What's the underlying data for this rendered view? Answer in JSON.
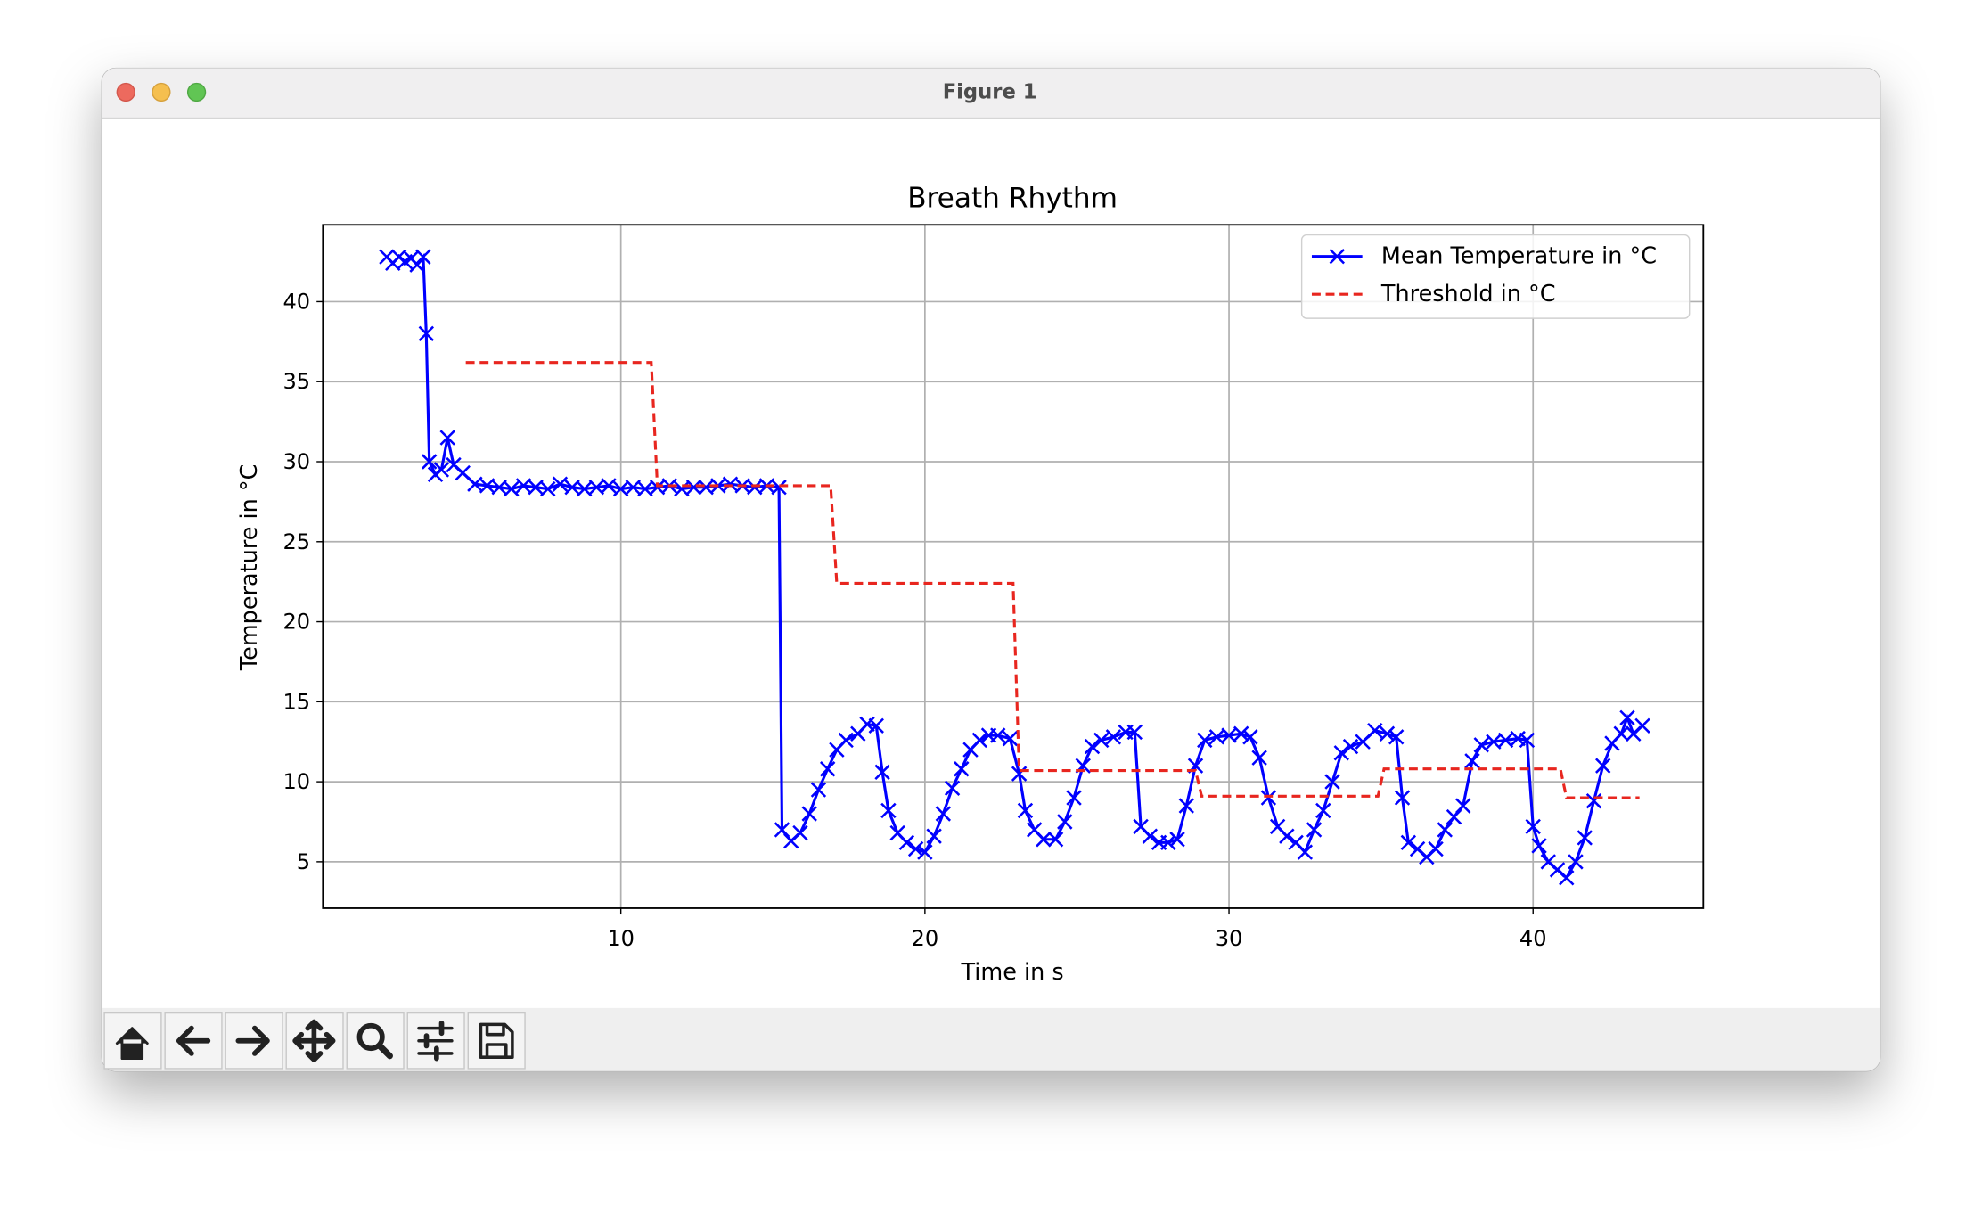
{
  "window_title": "Figure 1",
  "chart_data": {
    "type": "line",
    "title": "Breath Rhythm",
    "xlabel": "Time in s",
    "ylabel": "Temperature in °C",
    "xlim": [
      0.2,
      45.6
    ],
    "ylim": [
      2.1,
      44.8
    ],
    "xticks": [
      10,
      20,
      30,
      40
    ],
    "yticks": [
      5,
      10,
      15,
      20,
      25,
      30,
      35,
      40
    ],
    "grid": true,
    "legend": "upper right",
    "series": [
      {
        "name": "Mean Temperature in °C",
        "color": "#0000ff",
        "marker": "x",
        "linestyle": "solid",
        "x": [
          2.3,
          2.5,
          2.7,
          2.9,
          3.1,
          3.3,
          3.5,
          3.6,
          3.7,
          3.9,
          4.1,
          4.3,
          4.5,
          4.8,
          5.2,
          5.6,
          6.0,
          6.4,
          6.8,
          7.2,
          7.6,
          8.0,
          8.4,
          8.8,
          9.2,
          9.6,
          10.0,
          10.4,
          10.8,
          11.2,
          11.6,
          12.0,
          12.4,
          12.8,
          13.2,
          13.6,
          14.0,
          14.4,
          14.8,
          15.2,
          15.3,
          15.6,
          15.9,
          16.2,
          16.5,
          16.8,
          17.1,
          17.4,
          17.8,
          18.1,
          18.4,
          18.6,
          18.8,
          19.1,
          19.4,
          19.7,
          20.0,
          20.3,
          20.6,
          20.9,
          21.2,
          21.5,
          21.8,
          22.1,
          22.4,
          22.8,
          23.1,
          23.3,
          23.6,
          23.9,
          24.3,
          24.6,
          24.9,
          25.2,
          25.5,
          25.8,
          26.2,
          26.6,
          26.9,
          27.1,
          27.4,
          27.7,
          28.0,
          28.3,
          28.6,
          28.9,
          29.2,
          29.6,
          30.0,
          30.4,
          30.7,
          31.0,
          31.3,
          31.6,
          31.9,
          32.2,
          32.5,
          32.8,
          33.1,
          33.4,
          33.7,
          34.0,
          34.4,
          34.8,
          35.2,
          35.5,
          35.7,
          35.9,
          36.2,
          36.5,
          36.8,
          37.1,
          37.4,
          37.7,
          38.0,
          38.3,
          38.7,
          39.1,
          39.5,
          39.8,
          40.0,
          40.2,
          40.5,
          40.8,
          41.1,
          41.4,
          41.7,
          42.0,
          42.3,
          42.6,
          42.9,
          43.1,
          43.3,
          43.6
        ],
        "values": [
          42.8,
          42.4,
          42.8,
          42.5,
          42.7,
          42.3,
          42.8,
          38,
          30,
          29.2,
          29.5,
          31.5,
          29.8,
          29.3,
          28.6,
          28.5,
          28.4,
          28.3,
          28.5,
          28.4,
          28.3,
          28.6,
          28.4,
          28.3,
          28.4,
          28.5,
          28.3,
          28.4,
          28.3,
          28.4,
          28.5,
          28.3,
          28.4,
          28.4,
          28.5,
          28.6,
          28.5,
          28.4,
          28.5,
          28.4,
          7,
          6.3,
          6.8,
          8,
          9.5,
          10.8,
          12,
          12.6,
          13,
          13.6,
          13.5,
          10.6,
          8.2,
          6.8,
          6.2,
          5.8,
          5.6,
          6.6,
          8,
          9.6,
          10.8,
          12,
          12.6,
          12.9,
          12.9,
          12.7,
          10.5,
          8.2,
          7,
          6.4,
          6.4,
          7.5,
          9,
          11,
          12.2,
          12.6,
          12.8,
          13.1,
          13.1,
          7.2,
          6.6,
          6.2,
          6.2,
          6.4,
          8.5,
          11,
          12.6,
          12.8,
          12.9,
          13,
          12.8,
          11.5,
          9,
          7.2,
          6.6,
          6.2,
          5.6,
          7,
          8.2,
          10,
          11.8,
          12.2,
          12.5,
          13.2,
          13,
          12.8,
          9,
          6.2,
          5.8,
          5.3,
          5.8,
          7,
          7.8,
          8.5,
          11.3,
          12.3,
          12.5,
          12.6,
          12.7,
          12.6,
          7.2,
          6,
          5,
          4.5,
          4,
          5,
          6.5,
          8.8,
          11,
          12.4,
          13,
          14,
          13,
          13.5
        ]
      },
      {
        "name": "Threshold in °C",
        "color": "#e8261f",
        "marker": "none",
        "linestyle": "dashed",
        "x": [
          4.9,
          11.0,
          11.2,
          16.9,
          17.1,
          22.9,
          23.1,
          28.9,
          29.1,
          34.9,
          35.1,
          40.9,
          41.1,
          43.5
        ],
        "values": [
          36.2,
          36.2,
          28.5,
          28.5,
          22.4,
          22.4,
          10.7,
          10.7,
          9.1,
          9.1,
          10.8,
          10.8,
          9.0,
          9.0
        ]
      }
    ]
  }
}
